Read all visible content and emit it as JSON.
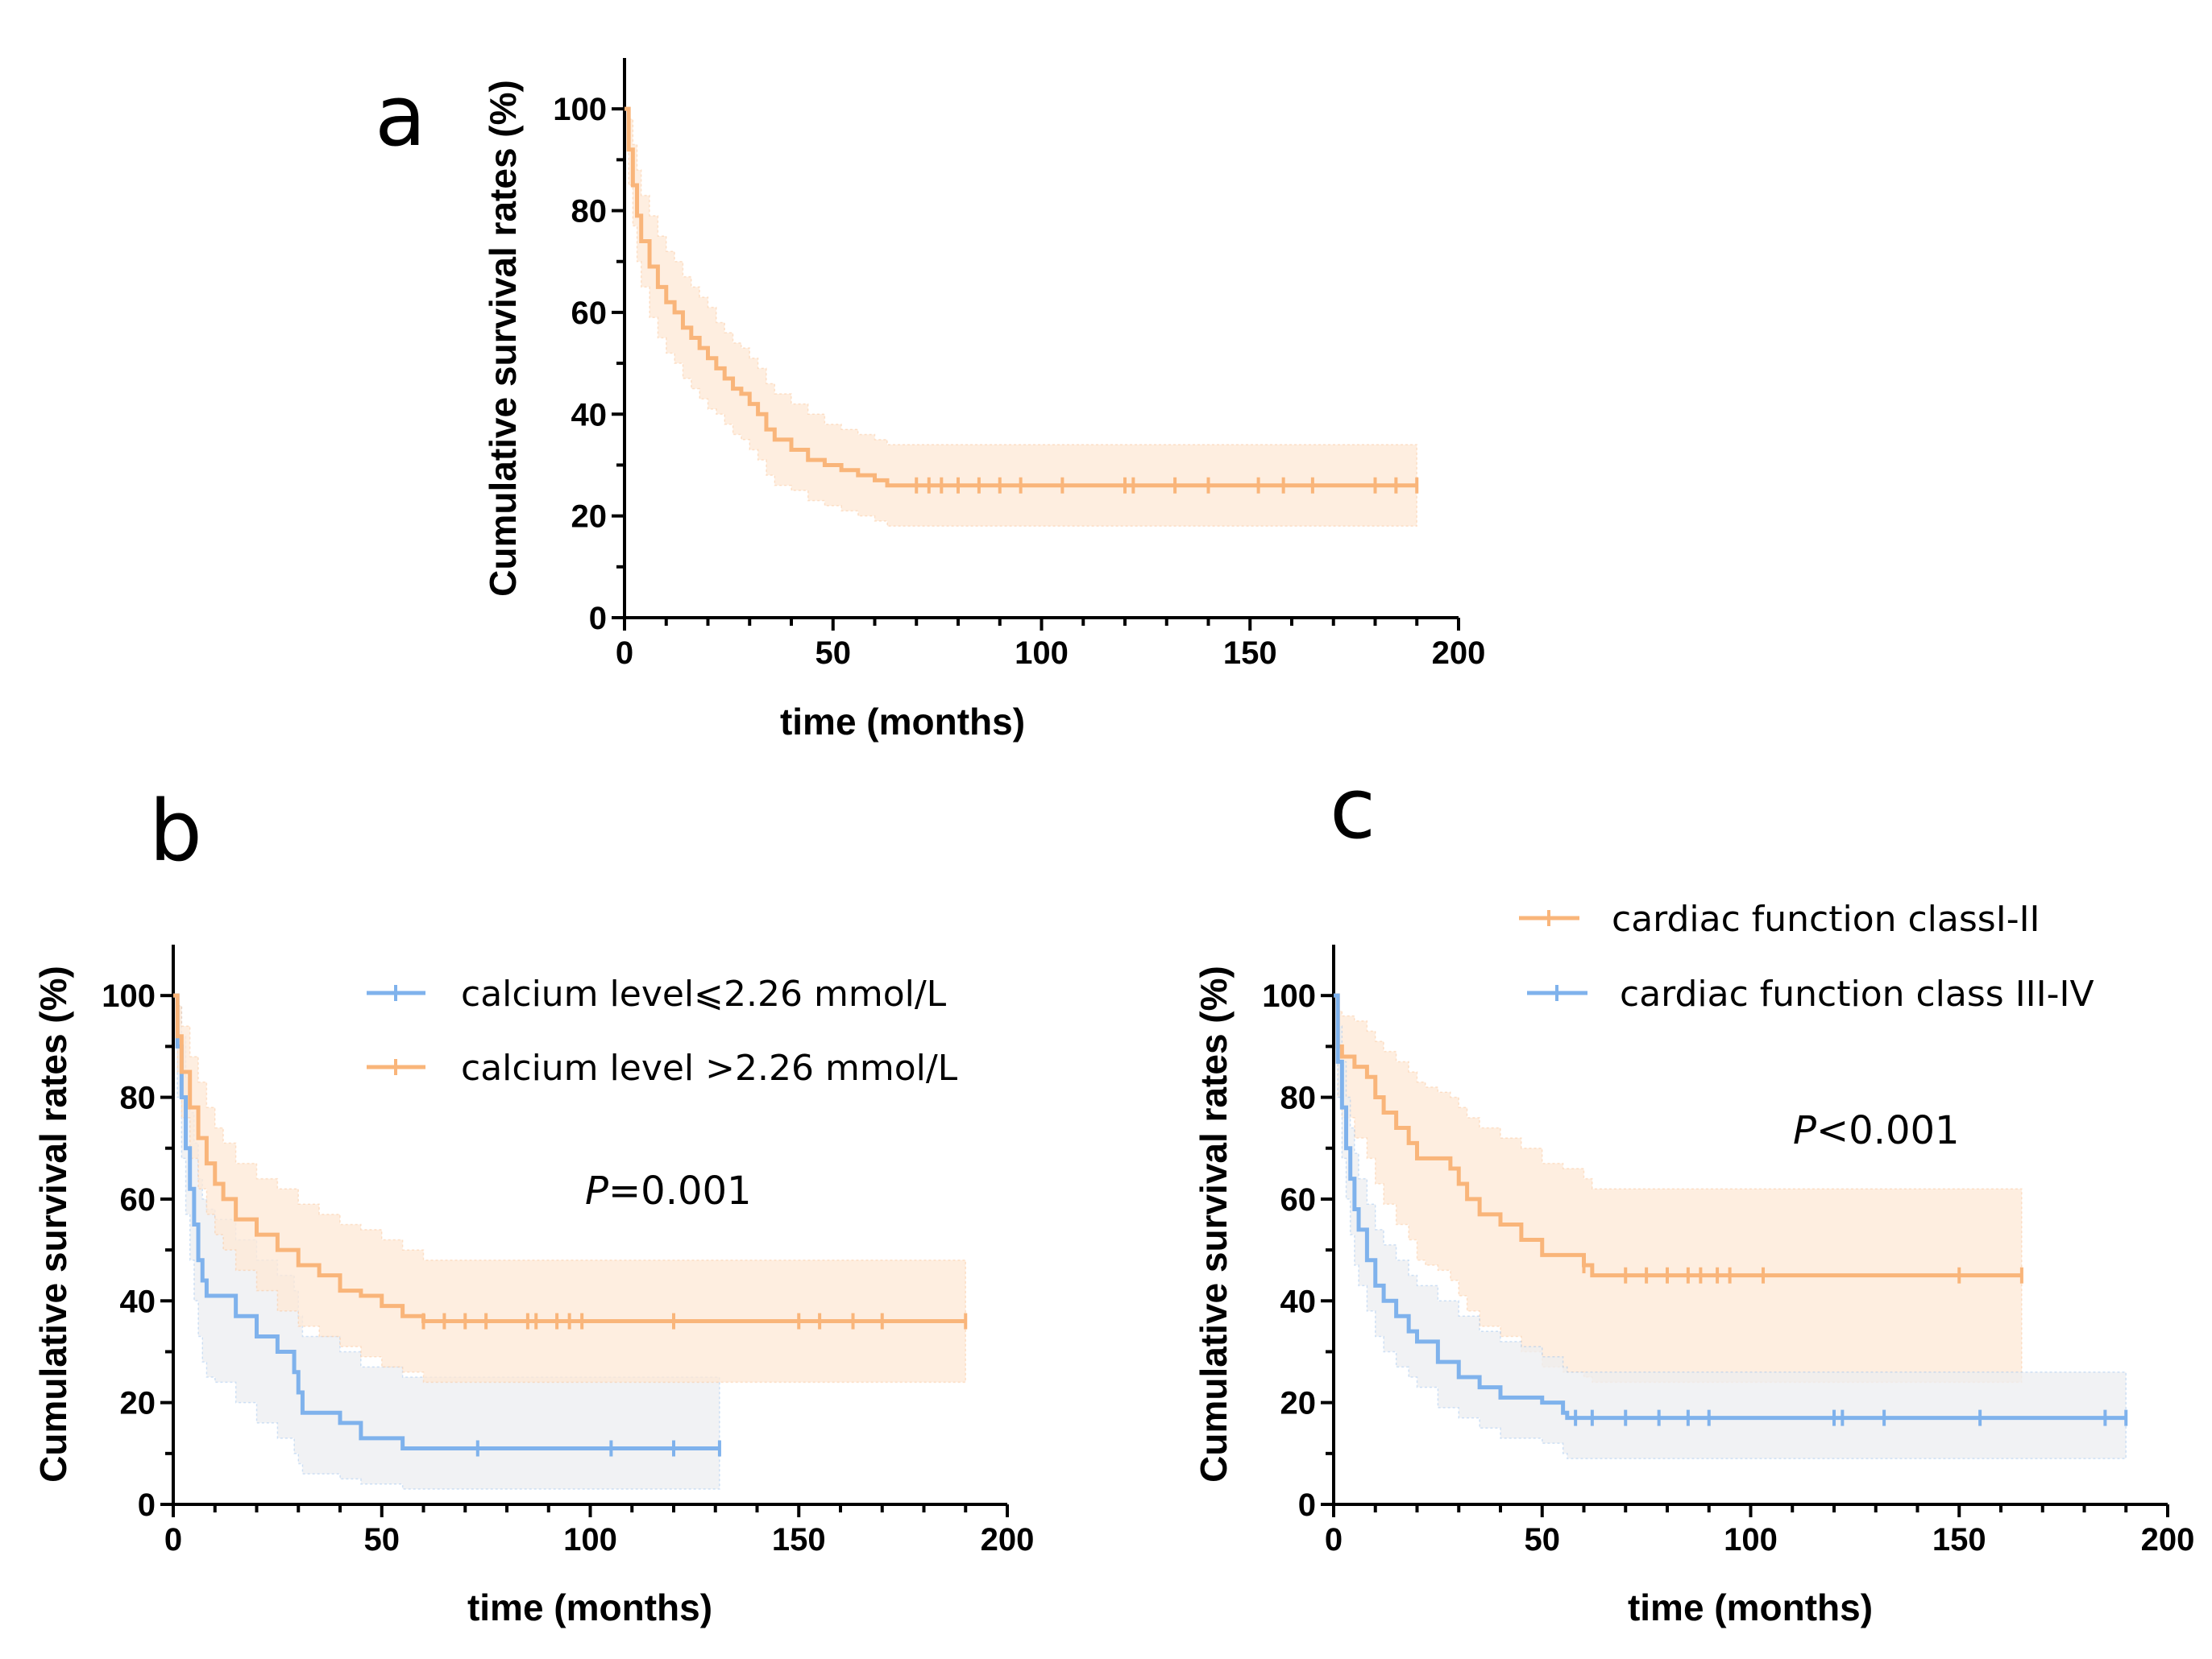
{
  "colors": {
    "orange": "#F9B57A",
    "blue": "#7FB2EC",
    "orange_ci": "#FDE8D6",
    "blue_ci": "#ECEDF0"
  },
  "chart_data": [
    {
      "panel": "a",
      "type": "line",
      "xlabel": "time (months)",
      "ylabel": "Cumulative survival rates (%)",
      "xlim": [
        0,
        200
      ],
      "ylim": [
        0,
        110
      ],
      "xticks": [
        0,
        50,
        100,
        150,
        200
      ],
      "yticks": [
        0,
        20,
        40,
        60,
        80,
        100
      ],
      "annotation": "",
      "series": [
        {
          "name": "",
          "color": "orange",
          "x": [
            0,
            1,
            2,
            3,
            4,
            6,
            8,
            10,
            12,
            14,
            16,
            18,
            20,
            22,
            24,
            26,
            28,
            30,
            32,
            34,
            36,
            40,
            44,
            48,
            52,
            56,
            60,
            63,
            190
          ],
          "y": [
            100,
            92,
            85,
            79,
            74,
            69,
            65,
            62,
            60,
            57,
            55,
            53,
            51,
            49,
            47,
            45,
            44,
            42,
            40,
            37,
            35,
            33,
            31,
            30,
            29,
            28,
            27,
            26,
            26
          ],
          "ci_lower": [
            100,
            85,
            77,
            70,
            65,
            59,
            55,
            52,
            50,
            47,
            45,
            43,
            41,
            40,
            38,
            36,
            35,
            33,
            31,
            28,
            26,
            25,
            23,
            22,
            21,
            20,
            19,
            18,
            18
          ],
          "ci_upper": [
            100,
            98,
            93,
            88,
            83,
            79,
            75,
            72,
            70,
            67,
            65,
            63,
            61,
            58,
            56,
            54,
            53,
            51,
            49,
            46,
            44,
            42,
            40,
            38,
            37,
            36,
            35,
            34,
            34
          ],
          "censor_x": [
            70,
            73,
            76,
            80,
            85,
            90,
            95,
            105,
            120,
            122,
            132,
            140,
            152,
            158,
            165,
            180,
            185,
            190
          ]
        }
      ]
    },
    {
      "panel": "b",
      "type": "line",
      "xlabel": "time (months)",
      "ylabel": "Cumulative survival rates (%)",
      "xlim": [
        0,
        200
      ],
      "ylim": [
        0,
        110
      ],
      "xticks": [
        0,
        50,
        100,
        150,
        200
      ],
      "yticks": [
        0,
        20,
        40,
        60,
        80,
        100
      ],
      "annotation": {
        "italic": "P",
        "rest": "=0.001"
      },
      "legend": "top-right",
      "series": [
        {
          "name": "calcium level⩽2.26 mmol/L",
          "color": "blue",
          "x": [
            0,
            1,
            2,
            3,
            4,
            5,
            6,
            7,
            8,
            10,
            15,
            20,
            25,
            29,
            30,
            31,
            40,
            45,
            55,
            131
          ],
          "y": [
            100,
            90,
            80,
            70,
            62,
            55,
            48,
            44,
            41,
            41,
            37,
            33,
            30,
            26,
            22,
            18,
            16,
            13,
            11,
            11
          ],
          "ci_lower": [
            100,
            80,
            68,
            57,
            48,
            40,
            33,
            28,
            25,
            24,
            20,
            16,
            13,
            10,
            8,
            6,
            5,
            4,
            3,
            3
          ],
          "ci_upper": [
            100,
            98,
            92,
            84,
            77,
            71,
            64,
            60,
            58,
            56,
            52,
            48,
            45,
            42,
            37,
            33,
            30,
            27,
            25,
            25
          ],
          "censor_x": [
            73,
            105,
            120,
            131
          ]
        },
        {
          "name": "calcium level >2.26 mmol/L",
          "color": "orange",
          "x": [
            0,
            1,
            2,
            4,
            6,
            8,
            10,
            12,
            15,
            20,
            25,
            30,
            35,
            40,
            45,
            50,
            55,
            60,
            62,
            190
          ],
          "y": [
            100,
            92,
            85,
            78,
            72,
            67,
            63,
            60,
            56,
            53,
            50,
            47,
            45,
            42,
            41,
            39,
            37,
            36,
            36,
            36
          ],
          "ci_lower": [
            100,
            85,
            76,
            68,
            62,
            57,
            53,
            50,
            46,
            42,
            38,
            35,
            33,
            31,
            29,
            27,
            26,
            24,
            24,
            24
          ],
          "ci_upper": [
            100,
            98,
            94,
            88,
            83,
            78,
            74,
            71,
            67,
            64,
            62,
            59,
            57,
            55,
            54,
            52,
            50,
            48,
            48,
            48
          ],
          "censor_x": [
            60,
            65,
            70,
            75,
            85,
            87,
            92,
            95,
            98,
            120,
            150,
            155,
            163,
            170,
            190
          ]
        }
      ]
    },
    {
      "panel": "c",
      "type": "line",
      "xlabel": "time (months)",
      "ylabel": "Cumulative survival rates (%)",
      "xlim": [
        0,
        200
      ],
      "ylim": [
        0,
        110
      ],
      "xticks": [
        0,
        50,
        100,
        150,
        200
      ],
      "yticks": [
        0,
        20,
        40,
        60,
        80,
        100
      ],
      "annotation": {
        "italic": "P",
        "rest": "<0.001"
      },
      "legend": "top-right",
      "series": [
        {
          "name": "cardiac function classI-II",
          "color": "orange",
          "x": [
            0,
            1,
            2,
            5,
            8,
            10,
            12,
            15,
            18,
            20,
            22,
            25,
            28,
            30,
            32,
            35,
            40,
            45,
            50,
            55,
            60,
            62,
            165
          ],
          "y": [
            100,
            90,
            88,
            86,
            84,
            80,
            77,
            74,
            71,
            68,
            68,
            68,
            66,
            63,
            60,
            57,
            55,
            52,
            49,
            49,
            47,
            45,
            45
          ],
          "ci_lower": [
            100,
            80,
            76,
            72,
            68,
            63,
            59,
            55,
            52,
            48,
            47,
            46,
            44,
            41,
            38,
            35,
            33,
            30,
            27,
            26,
            25,
            24,
            24
          ],
          "ci_upper": [
            100,
            97,
            96,
            95,
            93,
            91,
            89,
            87,
            85,
            83,
            82,
            81,
            80,
            78,
            76,
            74,
            72,
            70,
            67,
            66,
            64,
            62,
            62
          ],
          "censor_x": [
            60,
            70,
            75,
            80,
            85,
            88,
            92,
            95,
            103,
            150,
            165
          ]
        },
        {
          "name": "cardiac function class III-IV",
          "color": "blue",
          "x": [
            0,
            1,
            2,
            3,
            4,
            5,
            6,
            8,
            10,
            12,
            15,
            18,
            20,
            25,
            30,
            35,
            40,
            45,
            50,
            55,
            56,
            190
          ],
          "y": [
            100,
            87,
            78,
            70,
            64,
            58,
            54,
            48,
            43,
            40,
            37,
            34,
            32,
            28,
            25,
            23,
            21,
            21,
            20,
            18,
            17,
            17
          ],
          "ci_lower": [
            100,
            80,
            68,
            60,
            53,
            47,
            43,
            38,
            33,
            30,
            27,
            25,
            23,
            19,
            17,
            15,
            13,
            13,
            12,
            10,
            9,
            9
          ],
          "ci_upper": [
            100,
            94,
            87,
            80,
            74,
            69,
            64,
            59,
            54,
            51,
            48,
            45,
            43,
            40,
            37,
            34,
            32,
            31,
            29,
            27,
            26,
            26
          ],
          "censor_x": [
            58,
            62,
            70,
            78,
            85,
            90,
            120,
            122,
            132,
            155,
            185,
            190
          ]
        }
      ]
    }
  ]
}
